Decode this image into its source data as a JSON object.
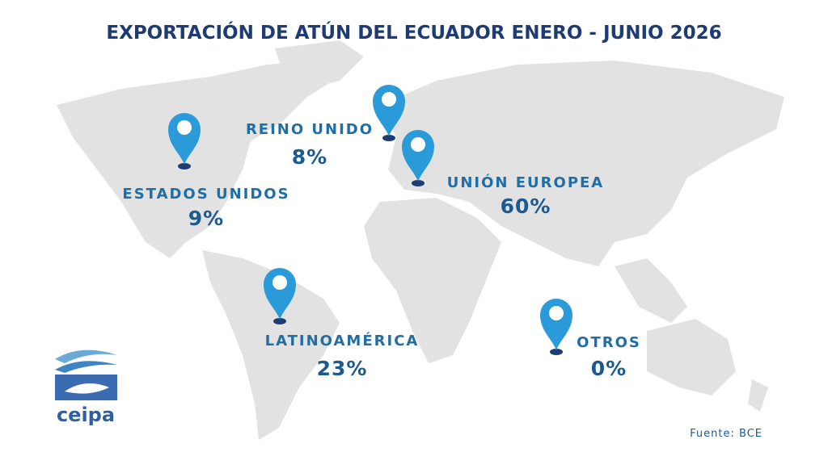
{
  "title": "EXPORTACIÓN DE ATÚN DEL ECUADOR ENERO - JUNIO 2026",
  "markers": [
    {
      "name": "REINO UNIDO",
      "share": "8%"
    },
    {
      "name": "UNIÓN EUROPEA",
      "share": "60%"
    },
    {
      "name": "ESTADOS UNIDOS",
      "share": "9%"
    },
    {
      "name": "LATINOAMÉRICA",
      "share": "23%"
    },
    {
      "name": "OTROS",
      "share": "0%"
    }
  ],
  "logo": "ceipa",
  "source": "Fuente: BCE"
}
